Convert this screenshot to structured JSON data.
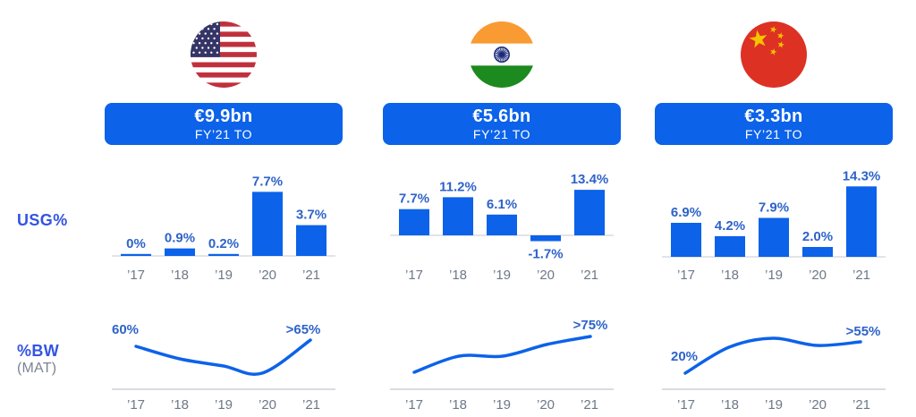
{
  "colors": {
    "accent_blue": "#0c62e9",
    "label_blue": "#2e63c9",
    "heading_blue": "#3354e3",
    "year_gray": "#6d7887",
    "mat_gray": "#7b8490",
    "axis_gray": "#d9dce1",
    "badge_text": "#ffffff"
  },
  "row_labels": {
    "usg": "USG%",
    "bw": "%BW",
    "bw_sub": "(MAT)"
  },
  "columns": [
    {
      "country": "us",
      "flag_icon": "us-flag-icon",
      "badge": {
        "value": "€9.9bn",
        "caption": "FY’21 TO"
      },
      "usg_chart_id": "us-usg",
      "bw_chart_id": "us-bw"
    },
    {
      "country": "india",
      "flag_icon": "india-flag-icon",
      "badge": {
        "value": "€5.6bn",
        "caption": "FY’21 TO"
      },
      "usg_chart_id": "in-usg",
      "bw_chart_id": "in-bw"
    },
    {
      "country": "china",
      "flag_icon": "china-flag-icon",
      "badge": {
        "value": "€3.3bn",
        "caption": "FY’21 TO"
      },
      "usg_chart_id": "cn-usg",
      "bw_chart_id": "cn-bw"
    }
  ],
  "chart_data": [
    {
      "id": "us-usg",
      "type": "bar",
      "title": "USG% — United States",
      "categories": [
        "’17",
        "’18",
        "’19",
        "’20",
        "’21"
      ],
      "values": [
        0,
        0.9,
        0.2,
        7.7,
        3.7
      ],
      "value_labels": [
        "0%",
        "0.9%",
        "0.2%",
        "7.7%",
        "3.7%"
      ],
      "xlabel": "",
      "ylabel": "USG%",
      "grid": false,
      "legend": "none"
    },
    {
      "id": "us-bw",
      "type": "line",
      "title": "%BW (MAT) — United States",
      "categories": [
        "’17",
        "’18",
        "’19",
        "’20",
        "’21"
      ],
      "start_label": "60%",
      "end_label": ">65%",
      "values_est": [
        60,
        55,
        52,
        48,
        66
      ],
      "xlabel": "",
      "ylabel": "%BW (MAT)",
      "grid": false,
      "legend": "none"
    },
    {
      "id": "in-usg",
      "type": "bar",
      "title": "USG% — India",
      "categories": [
        "’17",
        "’18",
        "’19",
        "’20",
        "’21"
      ],
      "values": [
        7.7,
        11.2,
        6.1,
        -1.7,
        13.4
      ],
      "value_labels": [
        "7.7%",
        "11.2%",
        "6.1%",
        "-1.7%",
        "13.4%"
      ],
      "xlabel": "",
      "ylabel": "USG%",
      "grid": false,
      "legend": "none"
    },
    {
      "id": "in-bw",
      "type": "line",
      "title": "%BW (MAT) — India",
      "categories": [
        "’17",
        "’18",
        "’19",
        "’20",
        "’21"
      ],
      "start_label": "",
      "end_label": ">75%",
      "values_est": [
        55,
        62,
        63,
        70,
        76
      ],
      "xlabel": "",
      "ylabel": "%BW (MAT)",
      "grid": false,
      "legend": "none"
    },
    {
      "id": "cn-usg",
      "type": "bar",
      "title": "USG% — China",
      "categories": [
        "’17",
        "’18",
        "’19",
        "’20",
        "’21"
      ],
      "values": [
        6.9,
        4.2,
        7.9,
        2.0,
        14.3
      ],
      "value_labels": [
        "6.9%",
        "4.2%",
        "7.9%",
        "2.0%",
        "14.3%"
      ],
      "xlabel": "",
      "ylabel": "USG%",
      "grid": false,
      "legend": "none"
    },
    {
      "id": "cn-bw",
      "type": "line",
      "title": "%BW (MAT) — China",
      "categories": [
        "’17",
        "’18",
        "’19",
        "’20",
        "’21"
      ],
      "start_label": "20%",
      "end_label": ">55%",
      "values_est": [
        20,
        42,
        50,
        48,
        56
      ],
      "xlabel": "",
      "ylabel": "%BW (MAT)",
      "grid": false,
      "legend": "none"
    }
  ]
}
